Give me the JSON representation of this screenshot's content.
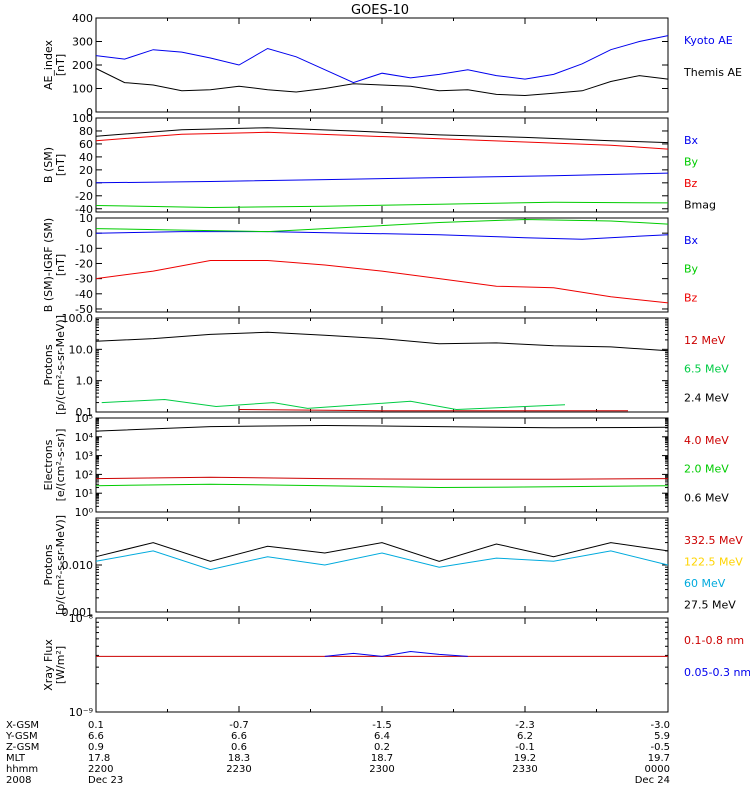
{
  "title": "GOES-10",
  "chart_data": [
    {
      "type": "line",
      "ylabel": "AE_index",
      "yunit": "[nT]",
      "ylim": [
        0,
        400
      ],
      "yticks": [
        {
          "v": 0,
          "label": "0"
        },
        {
          "v": 100,
          "label": "100"
        },
        {
          "v": 200,
          "label": "200"
        },
        {
          "v": 300,
          "label": "300"
        },
        {
          "v": 400,
          "label": "400"
        }
      ],
      "series": [
        {
          "name": "Kyoto AE",
          "color": "#0000ee",
          "x": [
            0,
            0.05,
            0.1,
            0.15,
            0.2,
            0.25,
            0.3,
            0.35,
            0.4,
            0.45,
            0.5,
            0.55,
            0.6,
            0.65,
            0.7,
            0.75,
            0.8,
            0.85,
            0.9,
            0.95,
            1.0
          ],
          "y": [
            240,
            225,
            265,
            255,
            230,
            200,
            270,
            235,
            180,
            125,
            165,
            145,
            160,
            180,
            155,
            140,
            160,
            205,
            265,
            300,
            325
          ]
        },
        {
          "name": "Themis AE",
          "color": "#000000",
          "x": [
            0,
            0.05,
            0.1,
            0.15,
            0.2,
            0.25,
            0.3,
            0.35,
            0.4,
            0.45,
            0.5,
            0.55,
            0.6,
            0.65,
            0.7,
            0.75,
            0.8,
            0.85,
            0.9,
            0.95,
            1.0
          ],
          "y": [
            185,
            125,
            115,
            90,
            95,
            110,
            95,
            85,
            100,
            120,
            115,
            110,
            90,
            95,
            75,
            70,
            80,
            90,
            130,
            155,
            140
          ]
        }
      ]
    },
    {
      "type": "line",
      "ylabel": "B (SM)",
      "yunit": "[nT]",
      "ylim": [
        -45,
        100
      ],
      "yticks": [
        {
          "v": -40,
          "label": "-40"
        },
        {
          "v": -20,
          "label": "-20"
        },
        {
          "v": 0,
          "label": "0"
        },
        {
          "v": 20,
          "label": "20"
        },
        {
          "v": 40,
          "label": "40"
        },
        {
          "v": 60,
          "label": "60"
        },
        {
          "v": 80,
          "label": "80"
        },
        {
          "v": 100,
          "label": "100"
        }
      ],
      "series": [
        {
          "name": "Bx",
          "color": "#0000ee",
          "x": [
            0,
            0.2,
            0.4,
            0.6,
            0.8,
            1.0
          ],
          "y": [
            0,
            2,
            5,
            8,
            11,
            15
          ]
        },
        {
          "name": "By",
          "color": "#00cc00",
          "x": [
            0,
            0.2,
            0.4,
            0.6,
            0.8,
            1.0
          ],
          "y": [
            -35,
            -38,
            -36,
            -33,
            -30,
            -31
          ]
        },
        {
          "name": "Bz",
          "color": "#ee0000",
          "x": [
            0,
            0.15,
            0.3,
            0.45,
            0.6,
            0.75,
            0.9,
            1.0
          ],
          "y": [
            65,
            75,
            78,
            73,
            68,
            63,
            58,
            52
          ]
        },
        {
          "name": "Bmag",
          "color": "#000000",
          "x": [
            0,
            0.15,
            0.3,
            0.45,
            0.6,
            0.75,
            0.9,
            1.0
          ],
          "y": [
            72,
            82,
            85,
            80,
            74,
            70,
            65,
            62
          ]
        }
      ]
    },
    {
      "type": "line",
      "ylabel": "B (SM)-IGRF (SM)",
      "yunit": "[nT]",
      "ylim": [
        -52,
        10
      ],
      "yticks": [
        {
          "v": -50,
          "label": "-50"
        },
        {
          "v": -40,
          "label": "-40"
        },
        {
          "v": -30,
          "label": "-30"
        },
        {
          "v": -20,
          "label": "-20"
        },
        {
          "v": -10,
          "label": "-10"
        },
        {
          "v": 0,
          "label": "0"
        },
        {
          "v": 10,
          "label": "10"
        }
      ],
      "series": [
        {
          "name": "Bx",
          "color": "#0000ee",
          "x": [
            0,
            0.15,
            0.3,
            0.45,
            0.6,
            0.75,
            0.85,
            1.0
          ],
          "y": [
            0,
            1,
            1,
            0,
            -1,
            -3,
            -4,
            -1
          ]
        },
        {
          "name": "By",
          "color": "#00cc00",
          "x": [
            0,
            0.15,
            0.3,
            0.45,
            0.6,
            0.75,
            0.9,
            1.0
          ],
          "y": [
            3,
            2,
            1,
            4,
            7,
            9,
            8,
            6
          ]
        },
        {
          "name": "Bz",
          "color": "#ee0000",
          "x": [
            0,
            0.1,
            0.2,
            0.3,
            0.4,
            0.5,
            0.6,
            0.7,
            0.8,
            0.9,
            1.0
          ],
          "y": [
            -30,
            -25,
            -18,
            -18,
            -21,
            -25,
            -30,
            -35,
            -36,
            -42,
            -46
          ]
        }
      ]
    },
    {
      "type": "line",
      "yscale": "log",
      "ylabel": "Protons",
      "yunit": "[p/(cm²-s-sr-MeV)]",
      "ylim": [
        0.1,
        100
      ],
      "yticks": [
        {
          "v": 0.1,
          "label": "0.1"
        },
        {
          "v": 1,
          "label": "1.0"
        },
        {
          "v": 10,
          "label": "10.0"
        },
        {
          "v": 100,
          "label": "100.0"
        }
      ],
      "series": [
        {
          "name": "12 MeV",
          "color": "#cc0000",
          "x": [
            0.25,
            0.5,
            0.78,
            0.93
          ],
          "y": [
            0.12,
            0.11,
            0.11,
            0.11
          ]
        },
        {
          "name": "6.5 MeV",
          "color": "#00cc44",
          "x": [
            0.01,
            0.12,
            0.21,
            0.31,
            0.37,
            0.55,
            0.63,
            0.82
          ],
          "y": [
            0.2,
            0.25,
            0.15,
            0.2,
            0.13,
            0.22,
            0.12,
            0.17
          ]
        },
        {
          "name": "2.4 MeV",
          "color": "#000000",
          "x": [
            0,
            0.1,
            0.2,
            0.3,
            0.4,
            0.5,
            0.6,
            0.7,
            0.8,
            0.9,
            1.0
          ],
          "y": [
            18,
            22,
            30,
            35,
            28,
            22,
            15,
            16,
            13,
            12,
            9
          ]
        }
      ]
    },
    {
      "type": "line",
      "yscale": "log",
      "ylabel": "Electrons",
      "yunit": "[e/(cm²-s-sr)]",
      "ylim": [
        1,
        100000
      ],
      "yticks": [
        {
          "v": 1,
          "label": "10⁰"
        },
        {
          "v": 10,
          "label": "10¹"
        },
        {
          "v": 100,
          "label": "10²"
        },
        {
          "v": 1000,
          "label": "10³"
        },
        {
          "v": 10000,
          "label": "10⁴"
        },
        {
          "v": 100000,
          "label": "10⁵"
        }
      ],
      "series": [
        {
          "name": "4.0 MeV",
          "color": "#cc0000",
          "x": [
            0,
            0.2,
            0.4,
            0.6,
            0.8,
            1.0
          ],
          "y": [
            60,
            70,
            60,
            55,
            55,
            60
          ]
        },
        {
          "name": "2.0 MeV",
          "color": "#00cc00",
          "x": [
            0,
            0.2,
            0.4,
            0.6,
            0.8,
            1.0
          ],
          "y": [
            25,
            30,
            25,
            20,
            22,
            25
          ]
        },
        {
          "name": "0.6 MeV",
          "color": "#000000",
          "x": [
            0,
            0.2,
            0.4,
            0.6,
            0.8,
            1.0
          ],
          "y": [
            20000,
            35000,
            40000,
            35000,
            30000,
            32000
          ]
        }
      ]
    },
    {
      "type": "line",
      "yscale": "log",
      "ylabel": "Protons",
      "yunit": "[p/(cm²-s-sr-MeV)]",
      "ylim": [
        0.001,
        0.1
      ],
      "yticks": [
        {
          "v": 0.001,
          "label": "0.001"
        },
        {
          "v": 0.01,
          "label": "0.010"
        }
      ],
      "series": [
        {
          "name": "332.5 MeV",
          "color": "#cc0000",
          "x": [],
          "y": []
        },
        {
          "name": "122.5 MeV",
          "color": "#ffd400",
          "x": [],
          "y": []
        },
        {
          "name": "60 MeV",
          "color": "#00aadd",
          "x": [
            0,
            0.1,
            0.2,
            0.3,
            0.4,
            0.5,
            0.6,
            0.7,
            0.8,
            0.9,
            1.0
          ],
          "y": [
            0.012,
            0.02,
            0.008,
            0.015,
            0.01,
            0.018,
            0.009,
            0.014,
            0.012,
            0.02,
            0.01
          ]
        },
        {
          "name": "27.5 MeV",
          "color": "#000000",
          "x": [
            0,
            0.1,
            0.2,
            0.3,
            0.4,
            0.5,
            0.6,
            0.7,
            0.8,
            0.9,
            1.0
          ],
          "y": [
            0.015,
            0.03,
            0.012,
            0.025,
            0.018,
            0.03,
            0.012,
            0.028,
            0.015,
            0.03,
            0.02
          ]
        }
      ]
    },
    {
      "type": "line",
      "yscale": "log",
      "ylabel": "Xray Flux",
      "yunit": "[W/m²]",
      "ylim": [
        1e-09,
        1e-08
      ],
      "yticks": [
        {
          "v": 1e-09,
          "label": "10⁻⁹"
        },
        {
          "v": 1e-08,
          "label": "10⁻⁸"
        }
      ],
      "series": [
        {
          "name": "0.1-0.8 nm",
          "color": "#cc0000",
          "x": [
            0,
            1.0
          ],
          "y": [
            3.9e-09,
            3.9e-09
          ]
        },
        {
          "name": "0.05-0.3 nm",
          "color": "#0000ee",
          "x": [
            0.4,
            0.45,
            0.5,
            0.55,
            0.6,
            0.65
          ],
          "y": [
            3.9e-09,
            4.2e-09,
            3.9e-09,
            4.4e-09,
            4.1e-09,
            3.9e-09
          ]
        }
      ]
    }
  ],
  "x_axis": {
    "row_labels": [
      "X-GSM",
      "Y-GSM",
      "Z-GSM",
      "MLT",
      "hhmm",
      "2008"
    ],
    "columns": [
      {
        "x": 0,
        "values": [
          "0.1",
          "6.6",
          "0.9",
          "17.8",
          "2200",
          "Dec 23"
        ]
      },
      {
        "x": 0.25,
        "values": [
          "-0.7",
          "6.6",
          "0.6",
          "18.3",
          "2230",
          ""
        ]
      },
      {
        "x": 0.5,
        "values": [
          "-1.5",
          "6.4",
          "0.2",
          "18.7",
          "2300",
          ""
        ]
      },
      {
        "x": 0.75,
        "values": [
          "-2.3",
          "6.2",
          "-0.1",
          "19.2",
          "2330",
          ""
        ]
      },
      {
        "x": 1.0,
        "values": [
          "-3.0",
          "5.9",
          "-0.5",
          "19.7",
          "0000",
          "Dec 24"
        ]
      }
    ]
  }
}
